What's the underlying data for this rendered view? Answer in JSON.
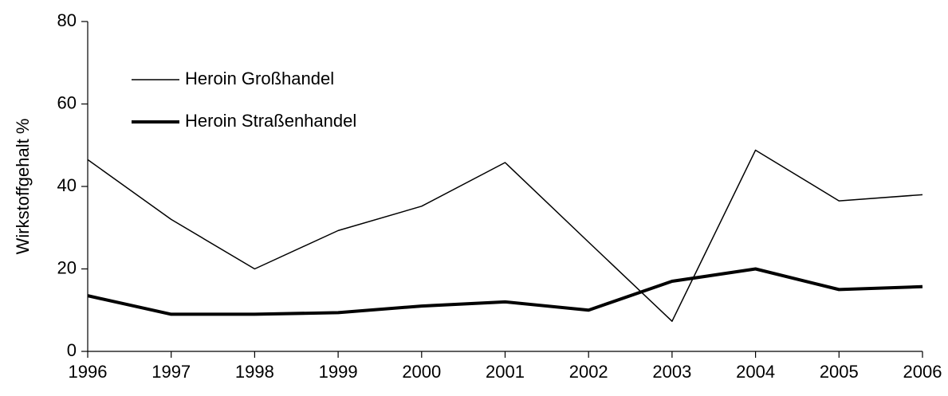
{
  "chart_data": {
    "type": "line",
    "y_label": "Wirkstoffgehalt %",
    "categories": [
      "1996",
      "1997",
      "1998",
      "1999",
      "2000",
      "2001",
      "2002",
      "2003",
      "2004",
      "2005",
      "2006"
    ],
    "series": [
      {
        "name": "Heroin Großhandel",
        "color": "#000000",
        "width": 1.5,
        "values": [
          46.5,
          32,
          20,
          29.3,
          35.2,
          45.8,
          26.5,
          7.3,
          48.8,
          36.5,
          38
        ]
      },
      {
        "name": "Heroin Straßenhandel",
        "color": "#000000",
        "width": 4,
        "values": [
          13.5,
          9,
          9,
          9.4,
          11,
          12,
          10,
          17,
          20,
          15,
          15.7
        ]
      }
    ],
    "ylim": [
      0,
      80
    ],
    "yticks": [
      0,
      20,
      40,
      60,
      80
    ],
    "legend": "upper left",
    "grid": false
  }
}
